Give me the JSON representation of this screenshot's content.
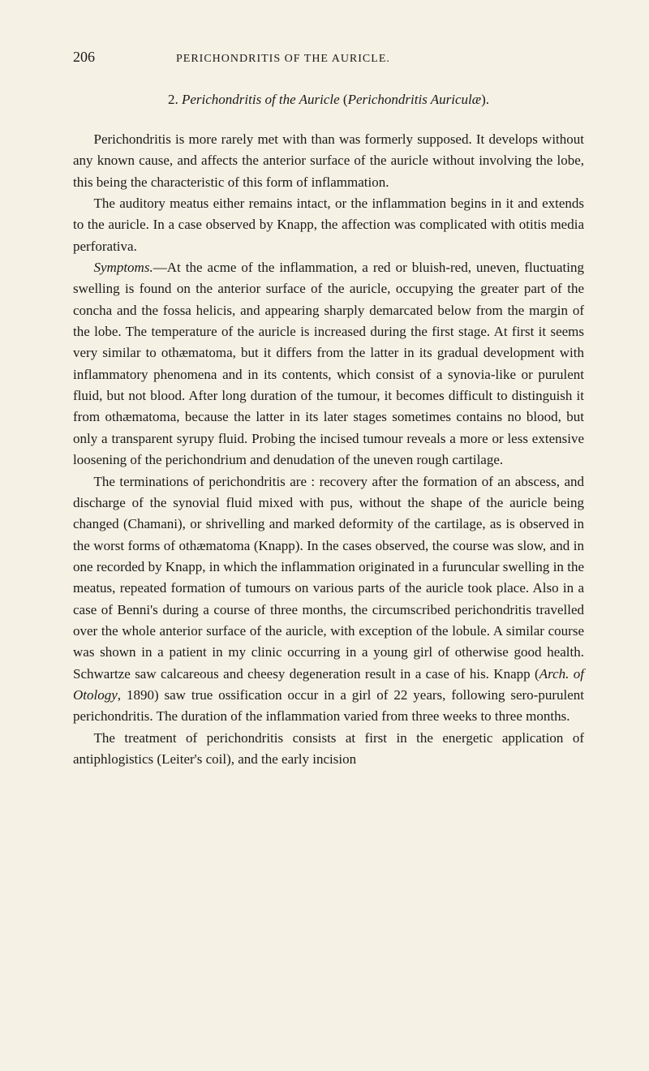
{
  "page": {
    "number": "206",
    "running_head": "PERICHONDRITIS OF THE AURICLE."
  },
  "section": {
    "number": "2.",
    "title_italic": "Perichondritis of the Auricle",
    "title_paren_prefix": "(",
    "title_paren_italic": "Perichondritis Auriculæ",
    "title_paren_suffix": ")."
  },
  "paragraphs": {
    "p1": "Perichondritis is more rarely met with than was formerly supposed. It develops without any known cause, and affects the anterior surface of the auricle without involving the lobe, this being the characteristic of this form of inflammation.",
    "p2": "The auditory meatus either remains intact, or the inflammation begins in it and extends to the auricle. In a case observed by Knapp, the affection was complicated with otitis media perforativa.",
    "p3_label": "Symptoms.",
    "p3_body": "—At the acme of the inflammation, a red or bluish-red, uneven, fluctuating swelling is found on the anterior surface of the auricle, occupying the greater part of the concha and the fossa helicis, and appearing sharply demarcated below from the margin of the lobe. The temperature of the auricle is increased during the first stage. At first it seems very similar to othæmatoma, but it differs from the latter in its gradual development with inflammatory phenomena and in its contents, which consist of a synovia-like or purulent fluid, but not blood. After long duration of the tumour, it becomes difficult to distinguish it from othæmatoma, because the latter in its later stages sometimes contains no blood, but only a transparent syrupy fluid. Probing the incised tumour reveals a more or less extensive loosening of the perichondrium and denudation of the uneven rough cartilage.",
    "p4_a": "The terminations of perichondritis are : recovery after the formation of an abscess, and discharge of the synovial fluid mixed with pus, without the shape of the auricle being changed (Chamani), or shrivelling and marked deformity of the cartilage, as is observed in the worst forms of othæmatoma (Knapp). In the cases observed, the course was slow, and in one recorded by Knapp, in which the inflammation originated in a furuncular swelling in the meatus, repeated formation of tumours on various parts of the auricle took place. Also in a case of Benni's during a course of three months, the circumscribed perichondritis travelled over the whole anterior surface of the auricle, with exception of the lobule. A similar course was shown in a patient in my clinic occurring in a young girl of otherwise good health. Schwartze saw calcareous and cheesy degeneration result in a case of his. Knapp (",
    "p4_ref": "Arch. of Otology",
    "p4_b": ", 1890) saw true ossification occur in a girl of 22 years, following sero-purulent perichondritis. The duration of the inflammation varied from three weeks to three months.",
    "p5": "The treatment of perichondritis consists at first in the energetic application of antiphlogistics (Leiter's coil), and the early incision"
  },
  "style": {
    "background_color": "#f5f1e4",
    "text_color": "#1a1a1a",
    "body_fontsize": 17,
    "header_fontsize": 14,
    "line_height": 1.55
  }
}
